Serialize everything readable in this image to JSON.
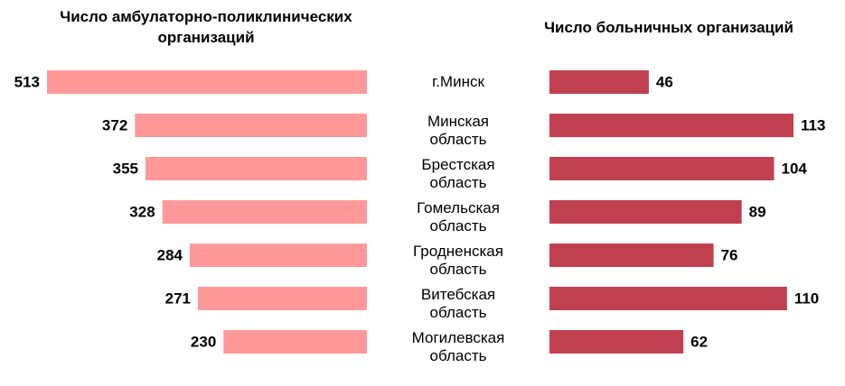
{
  "chart_data": [
    {
      "type": "bar",
      "title": "Число амбулаторно-поликлинических организаций",
      "categories": [
        "г.Минск",
        "Минская область",
        "Брестская область",
        "Гомельская область",
        "Гродненская область",
        "Витебская область",
        "Могилевская область"
      ],
      "values": [
        513,
        372,
        355,
        328,
        284,
        271,
        230
      ],
      "color": "#ff9999",
      "direction": "left"
    },
    {
      "type": "bar",
      "title": "Число больничных организаций",
      "values": [
        46,
        113,
        104,
        89,
        76,
        110,
        62
      ],
      "color": "#c0404f",
      "direction": "right"
    }
  ]
}
